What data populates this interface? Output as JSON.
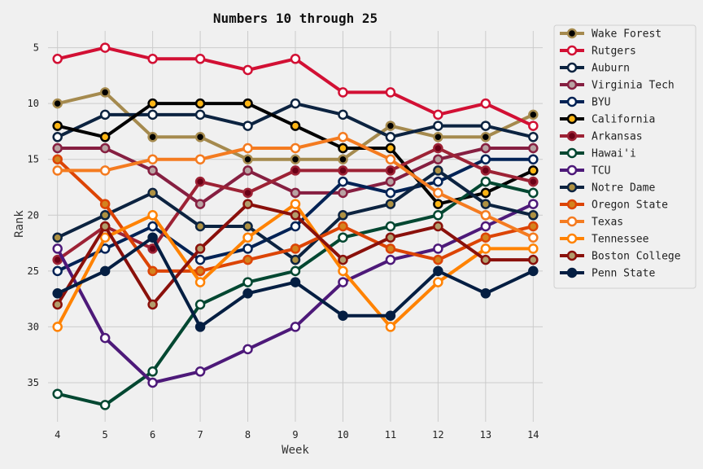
{
  "chart_data": {
    "type": "line",
    "title": "Numbers 10 through 25",
    "xlabel": "Week",
    "ylabel": "Rank",
    "x": [
      4,
      5,
      6,
      7,
      8,
      9,
      10,
      11,
      12,
      13,
      14
    ],
    "xlim": [
      3.8,
      14.2
    ],
    "ylim": [
      38.5,
      3.5
    ],
    "y_inverted": true,
    "yticks": [
      5,
      10,
      15,
      20,
      25,
      30,
      35
    ],
    "grid": true,
    "legend_placement": "outside-right",
    "series": [
      {
        "name": "Wake Forest",
        "line_color": "#a58a4e",
        "marker_fill": "#000000",
        "values": [
          10,
          9,
          13,
          13,
          15,
          15,
          15,
          12,
          13,
          13,
          11
        ]
      },
      {
        "name": "Rutgers",
        "line_color": "#d21034",
        "marker_fill": "#ffffff",
        "values": [
          6,
          5,
          6,
          6,
          7,
          6,
          9,
          9,
          11,
          10,
          12
        ]
      },
      {
        "name": "Auburn",
        "line_color": "#0c2340",
        "marker_fill": "#ffffff",
        "values": [
          13,
          11,
          11,
          11,
          12,
          10,
          11,
          13,
          12,
          12,
          13
        ]
      },
      {
        "name": "Virginia Tech",
        "line_color": "#861f41",
        "marker_fill": "#b8a2a2",
        "values": [
          14,
          14,
          16,
          19,
          16,
          18,
          18,
          17,
          15,
          14,
          14
        ]
      },
      {
        "name": "BYU",
        "line_color": "#002255",
        "marker_fill": "#ffffff",
        "values": [
          25,
          23,
          21,
          24,
          23,
          21,
          17,
          18,
          17,
          15,
          15
        ]
      },
      {
        "name": "California",
        "line_color": "#000000",
        "marker_fill": "#fdb515",
        "values": [
          12,
          13,
          10,
          10,
          10,
          12,
          14,
          14,
          19,
          18,
          16
        ]
      },
      {
        "name": "Arkansas",
        "line_color": "#9d2235",
        "marker_fill": "#6a0016",
        "values": [
          24,
          21,
          23,
          17,
          18,
          16,
          16,
          16,
          14,
          16,
          17
        ]
      },
      {
        "name": "Hawai'i",
        "line_color": "#024731",
        "marker_fill": "#ffffff",
        "values": [
          36,
          37,
          34,
          28,
          26,
          25,
          22,
          21,
          20,
          17,
          18
        ]
      },
      {
        "name": "TCU",
        "line_color": "#4d1979",
        "marker_fill": "#ffffff",
        "values": [
          23,
          31,
          35,
          34,
          32,
          30,
          26,
          24,
          23,
          21,
          19
        ]
      },
      {
        "name": "Notre Dame",
        "line_color": "#0c2340",
        "marker_fill": "#ae9142",
        "values": [
          22,
          20,
          18,
          21,
          21,
          24,
          20,
          19,
          16,
          19,
          20
        ]
      },
      {
        "name": "Oregon State",
        "line_color": "#dc4405",
        "marker_fill": "#d3831f",
        "values": [
          15,
          19,
          25,
          25,
          24,
          23,
          21,
          23,
          24,
          22,
          21
        ]
      },
      {
        "name": "Texas",
        "line_color": "#f47b20",
        "marker_fill": "#ffffff",
        "values": [
          16,
          16,
          15,
          15,
          14,
          14,
          13,
          15,
          18,
          20,
          22
        ]
      },
      {
        "name": "Tennessee",
        "line_color": "#ff8200",
        "marker_fill": "#ffffff",
        "values": [
          30,
          22,
          20,
          26,
          22,
          19,
          25,
          30,
          26,
          23,
          23
        ]
      },
      {
        "name": "Boston College",
        "line_color": "#8a100b",
        "marker_fill": "#b29d6c",
        "values": [
          28,
          21,
          28,
          23,
          19,
          20,
          24,
          22,
          21,
          24,
          24
        ]
      },
      {
        "name": "Penn State",
        "line_color": "#041e42",
        "marker_fill": "#041e42",
        "values": [
          27,
          25,
          22,
          30,
          27,
          26,
          29,
          29,
          25,
          27,
          25
        ]
      }
    ]
  }
}
